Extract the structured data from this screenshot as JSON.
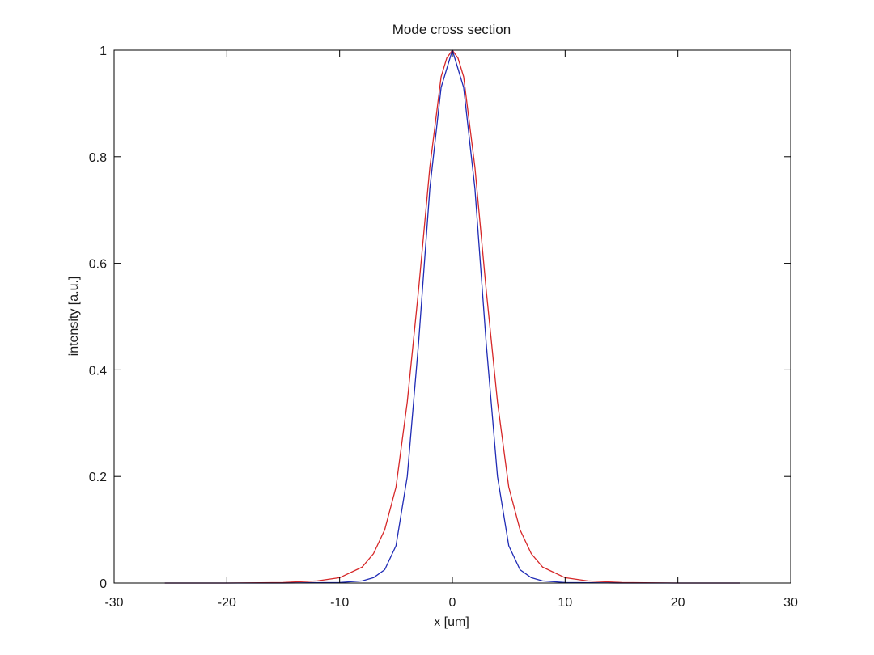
{
  "chart_data": {
    "type": "line",
    "title": "Mode cross section",
    "xlabel": "x [um]",
    "ylabel": "intensity [a.u.]",
    "xlim": [
      -30,
      30
    ],
    "ylim": [
      0,
      1
    ],
    "xticks": [
      -30,
      -20,
      -10,
      0,
      10,
      20,
      30
    ],
    "yticks": [
      0,
      0.2,
      0.4,
      0.6,
      0.8,
      1
    ],
    "xtick_labels": [
      "-30",
      "-20",
      "-10",
      "0",
      "10",
      "20",
      "30"
    ],
    "ytick_labels": [
      "0",
      "0.2",
      "0.4",
      "0.6",
      "0.8",
      "1"
    ],
    "grid": false,
    "legend": "none",
    "series": [
      {
        "color": "#d62728",
        "x": [
          -25.5,
          -20,
          -15,
          -12,
          -10,
          -8,
          -7,
          -6,
          -5,
          -4,
          -3,
          -2,
          -1,
          -0.5,
          0,
          0.5,
          1,
          2,
          3,
          4,
          5,
          6,
          7,
          8,
          10,
          12,
          15,
          20,
          25.5
        ],
        "y": [
          0,
          0,
          0.001,
          0.004,
          0.01,
          0.03,
          0.055,
          0.1,
          0.18,
          0.34,
          0.55,
          0.78,
          0.95,
          0.985,
          1,
          0.985,
          0.95,
          0.78,
          0.55,
          0.34,
          0.18,
          0.1,
          0.055,
          0.03,
          0.01,
          0.004,
          0.001,
          0,
          0
        ]
      },
      {
        "color": "#1f2bb5",
        "x": [
          -25.5,
          -15,
          -10,
          -8,
          -7,
          -6,
          -5,
          -4,
          -3,
          -2,
          -1,
          0,
          1,
          2,
          3,
          4,
          5,
          6,
          7,
          8,
          10,
          15,
          25.5
        ],
        "y": [
          0,
          0,
          0.001,
          0.004,
          0.01,
          0.025,
          0.07,
          0.2,
          0.45,
          0.74,
          0.93,
          1,
          0.93,
          0.74,
          0.45,
          0.2,
          0.07,
          0.025,
          0.01,
          0.004,
          0.001,
          0,
          0
        ]
      }
    ]
  }
}
